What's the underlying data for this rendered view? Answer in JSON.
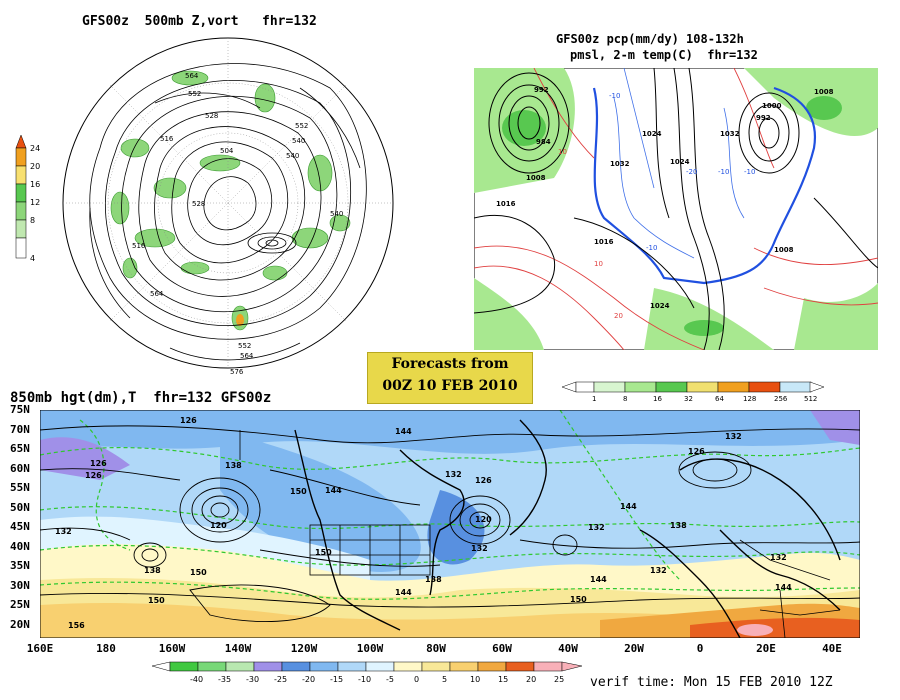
{
  "panel_500mb": {
    "title": "GFS00z  500mb Z,vort   fhr=132",
    "colorbar_ticks": [
      "24",
      "20",
      "16",
      "12",
      "8",
      "4"
    ],
    "contour_labels": [
      "564",
      "552",
      "540",
      "528",
      "516",
      "504",
      "528",
      "540",
      "552",
      "564",
      "576",
      "540",
      "516",
      "552",
      "564"
    ]
  },
  "panel_pop": {
    "title_line1": "GFS00z pcp(mm/dy) 108-132h",
    "title_line2": "pmsl, 2-m temp(C)  fhr=132",
    "isobar_labels": [
      "992",
      "984",
      "1008",
      "1016",
      "1024",
      "1024",
      "1032",
      "1032",
      "1016",
      "1008",
      "1008",
      "992",
      "1000",
      "1024"
    ],
    "temp_labels": [
      "-10",
      "-20",
      "-10",
      "10",
      "-10",
      "-10",
      "10",
      "20"
    ],
    "colorbar_ticks": [
      "1",
      "8",
      "16",
      "32",
      "64",
      "128",
      "256",
      "512"
    ],
    "colorbar_colors": [
      "#d8f5d0",
      "#a8e890",
      "#58c850",
      "#f0e070",
      "#f0a020",
      "#e85010",
      "#c8e8f8"
    ]
  },
  "forecast_box": {
    "line1": "Forecasts from",
    "line2": "00Z 10 FEB 2010"
  },
  "panel_850mb": {
    "title": "850mb hgt(dm),T  fhr=132 GFS00z",
    "y_ticks": [
      "75N",
      "70N",
      "65N",
      "60N",
      "55N",
      "50N",
      "45N",
      "40N",
      "35N",
      "30N",
      "25N",
      "20N"
    ],
    "x_ticks": [
      "160E",
      "180",
      "160W",
      "140W",
      "120W",
      "100W",
      "80W",
      "60W",
      "40W",
      "20W",
      "0",
      "20E",
      "40E"
    ],
    "height_labels": [
      "126",
      "138",
      "126",
      "120",
      "132",
      "144",
      "144",
      "150",
      "138",
      "150",
      "132",
      "126",
      "120",
      "132",
      "144",
      "138",
      "132",
      "126",
      "132",
      "144",
      "150",
      "138",
      "132",
      "144",
      "150",
      "156",
      "144",
      "150",
      "126",
      "132"
    ],
    "colorbar_ticks": [
      "-40",
      "-35",
      "-30",
      "-25",
      "-20",
      "-15",
      "-10",
      "-5",
      "0",
      "5",
      "10",
      "15",
      "20",
      "25"
    ],
    "colorbar_colors": [
      "#40c840",
      "#78d878",
      "#b8e8b0",
      "#a090e8",
      "#5890e0",
      "#80b8f0",
      "#b0d8f8",
      "#e0f4ff",
      "#fff8c8",
      "#f8e898",
      "#f8d070",
      "#f0a840",
      "#e86020",
      "#f8b0b8"
    ]
  },
  "verif_time": "verif time: Mon 15 FEB 2010 12Z"
}
